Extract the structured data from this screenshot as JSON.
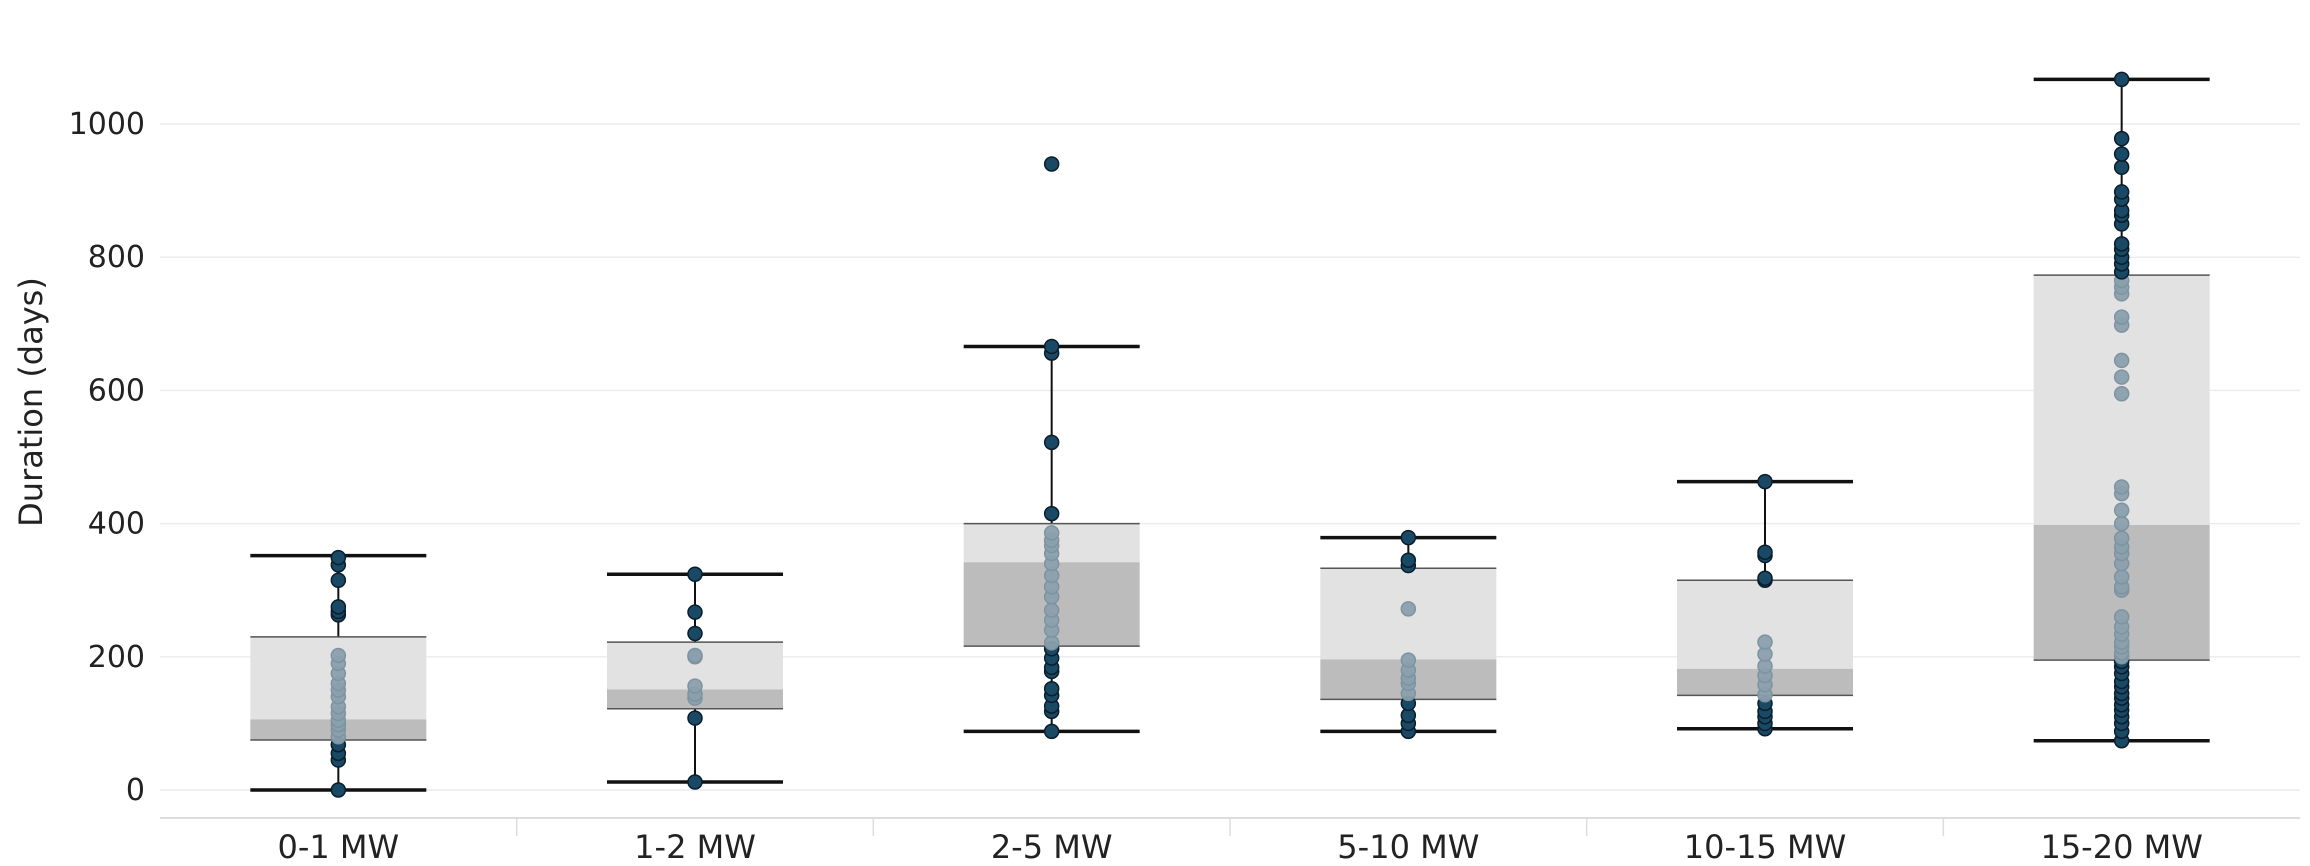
{
  "chart_data": {
    "type": "box",
    "title": "",
    "xlabel": "",
    "ylabel": "Duration (days)",
    "ylim": [
      -40,
      1140
    ],
    "yticks": [
      0,
      200,
      400,
      600,
      800,
      1000
    ],
    "grid": true,
    "categories": [
      "0-1 MW",
      "1-2 MW",
      "2-5 MW",
      "5-10 MW",
      "10-15 MW",
      "15-20 MW"
    ],
    "boxes": [
      {
        "category": "0-1 MW",
        "whisker_low": 0,
        "q1": 75,
        "median": 106,
        "q3": 230,
        "whisker_high": 352,
        "points": [
          0,
          45,
          55,
          68,
          80,
          90,
          98,
          105,
          115,
          125,
          140,
          150,
          160,
          175,
          190,
          202,
          263,
          268,
          275,
          315,
          338,
          349
        ]
      },
      {
        "category": "1-2 MW",
        "whisker_low": 12,
        "q1": 122,
        "median": 151,
        "q3": 222,
        "whisker_high": 324,
        "points": [
          12,
          108,
          138,
          144,
          156,
          200,
          202,
          235,
          267,
          324
        ]
      },
      {
        "category": "2-5 MW",
        "whisker_low": 88,
        "q1": 216,
        "median": 342,
        "q3": 400,
        "whisker_high": 666,
        "points": [
          88,
          118,
          126,
          142,
          152,
          178,
          184,
          198,
          212,
          221,
          240,
          255,
          270,
          290,
          305,
          322,
          340,
          355,
          367,
          375,
          386,
          415,
          522,
          656,
          666,
          940
        ]
      },
      {
        "category": "5-10 MW",
        "whisker_low": 88,
        "q1": 136,
        "median": 196,
        "q3": 333,
        "whisker_high": 379,
        "points": [
          88,
          100,
          112,
          130,
          145,
          160,
          168,
          180,
          195,
          272,
          337,
          345,
          379
        ]
      },
      {
        "category": "10-15 MW",
        "whisker_low": 92,
        "q1": 142,
        "median": 182,
        "q3": 315,
        "whisker_high": 463,
        "points": [
          92,
          100,
          110,
          118,
          130,
          143,
          158,
          172,
          186,
          204,
          222,
          315,
          318,
          352,
          357,
          463
        ]
      },
      {
        "category": "15-20 MW",
        "whisker_low": 74,
        "q1": 195,
        "median": 398,
        "q3": 773,
        "whisker_high": 1067,
        "points": [
          74,
          88,
          100,
          110,
          120,
          128,
          138,
          145,
          155,
          163,
          175,
          185,
          193,
          200,
          206,
          215,
          222,
          234,
          245,
          260,
          300,
          305,
          320,
          340,
          355,
          365,
          378,
          400,
          420,
          445,
          455,
          595,
          620,
          645,
          698,
          710,
          745,
          755,
          765,
          778,
          790,
          800,
          812,
          820,
          850,
          863,
          870,
          887,
          898,
          935,
          955,
          978,
          1067
        ]
      }
    ],
    "colors": {
      "box_upper": "#e2e2e2",
      "box_lower": "#bcbcbc",
      "point_outside": "#1a4966",
      "point_inside": "#8aa0ad",
      "whisker": "#111111",
      "grid": "#ececec"
    }
  }
}
